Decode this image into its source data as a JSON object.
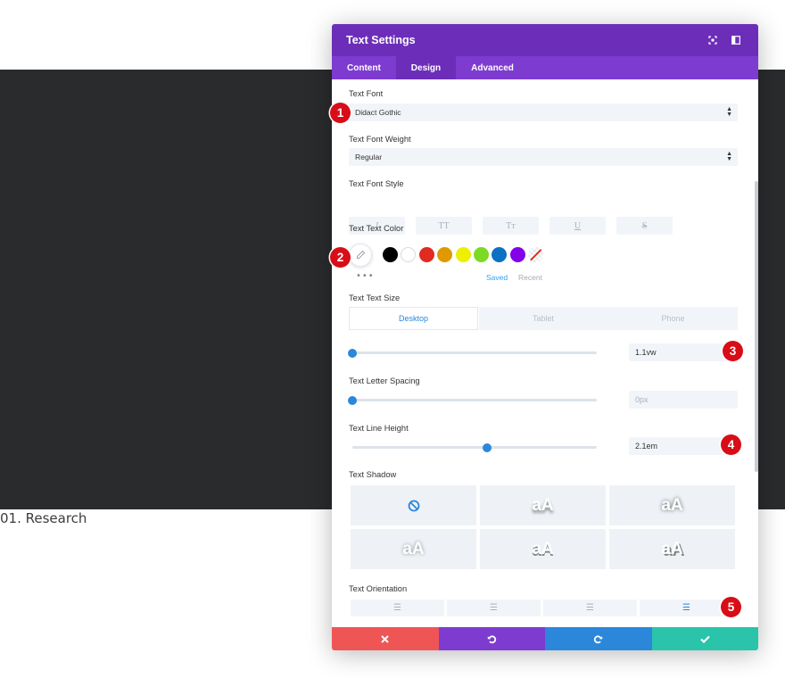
{
  "background": {
    "caption": "01. Research"
  },
  "modal": {
    "title": "Text Settings",
    "tabs": [
      {
        "label": "Content"
      },
      {
        "label": "Design"
      },
      {
        "label": "Advanced"
      }
    ],
    "active_tab": "Design"
  },
  "fields": {
    "font": {
      "label": "Text Font",
      "value": "Didact Gothic"
    },
    "font_weight": {
      "label": "Text Font Weight",
      "value": "Regular"
    },
    "font_style": {
      "label": "Text Font Style",
      "buttons": [
        "I",
        "TT",
        "Tт",
        "U",
        "S"
      ]
    },
    "text_color": {
      "label": "Text Text Color",
      "swatches": [
        "#000000",
        "#ffffff",
        "#e02b20",
        "#e09900",
        "#edf000",
        "#7cda24",
        "#0c71c3",
        "#8300e9"
      ],
      "saved_label": "Saved",
      "recent_label": "Recent",
      "more": "•••"
    },
    "text_size": {
      "label": "Text Text Size",
      "devices": [
        "Desktop",
        "Tablet",
        "Phone"
      ],
      "value": "1.1vw",
      "slider_fraction": 0
    },
    "letter_spacing": {
      "label": "Text Letter Spacing",
      "value": "0px",
      "slider_fraction": 0
    },
    "line_height": {
      "label": "Text Line Height",
      "value": "2.1em",
      "slider_fraction": 0.55
    },
    "text_shadow": {
      "label": "Text Shadow",
      "options": [
        "none",
        "aA",
        "aA",
        "aA",
        "aA",
        "aA"
      ]
    },
    "text_orientation": {
      "label": "Text Orientation",
      "options": [
        "left",
        "center",
        "right",
        "justify"
      ],
      "active": "justify"
    }
  },
  "footer": {
    "cancel_color": "#ef5555",
    "undo_color": "#7e3bd0",
    "redo_color": "#2b87da",
    "save_color": "#29c4a9"
  },
  "markers": [
    "1",
    "2",
    "3",
    "4",
    "5"
  ]
}
